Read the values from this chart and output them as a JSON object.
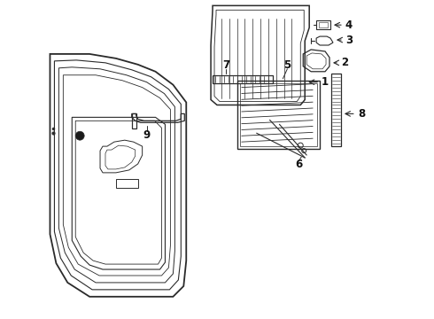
{
  "bg_color": "#ffffff",
  "line_color": "#2a2a2a",
  "label_color": "#111111",
  "fig_width": 4.9,
  "fig_height": 3.6,
  "dpi": 100
}
